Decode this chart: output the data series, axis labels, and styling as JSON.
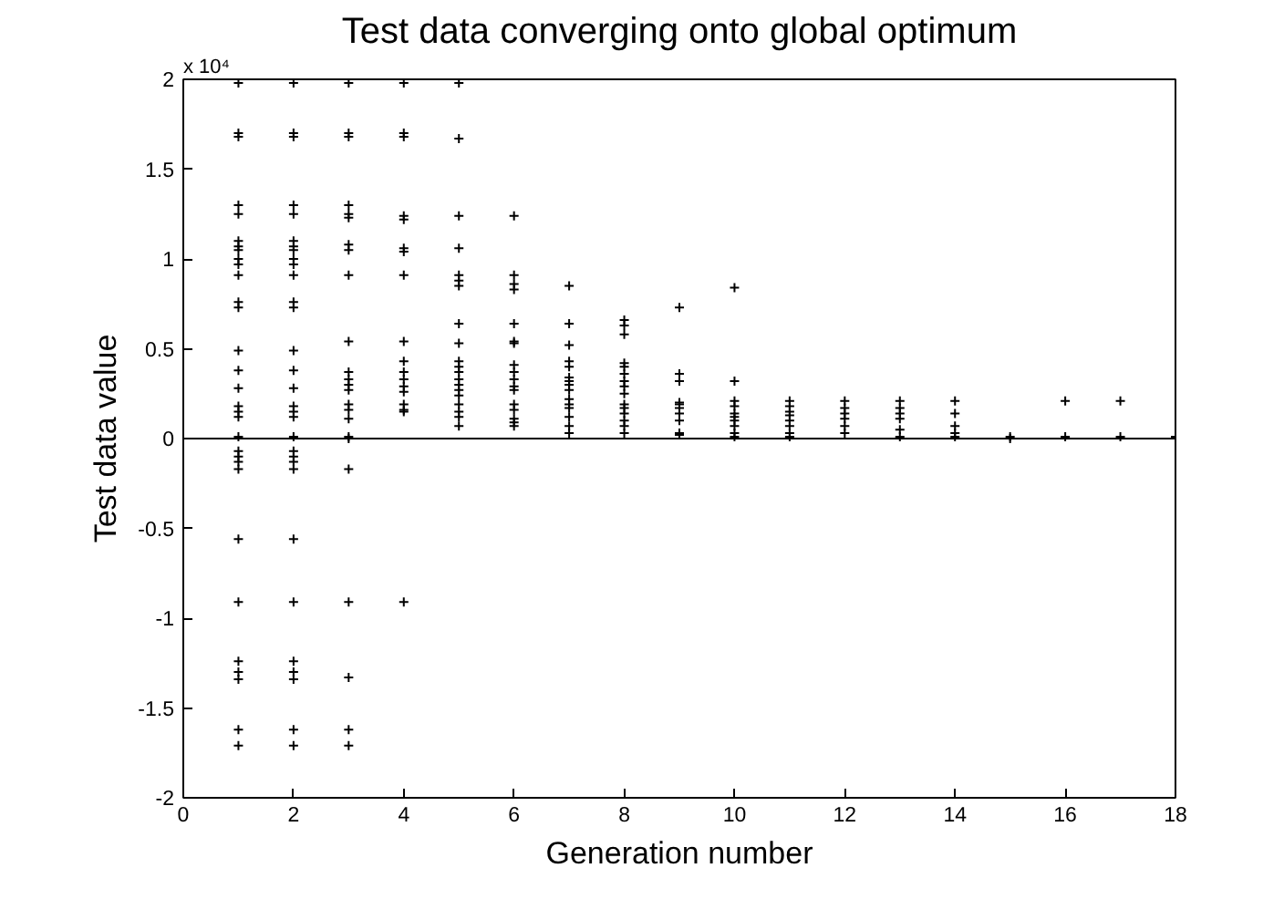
{
  "chart_data": {
    "type": "scatter",
    "title": "Test data converging onto global optimum",
    "xlabel": "Generation number",
    "ylabel": "Test data value",
    "annotations": [
      "x 10⁴"
    ],
    "xlim": [
      0,
      18
    ],
    "xticks": [
      0,
      2,
      4,
      6,
      8,
      10,
      12,
      14,
      16,
      18
    ],
    "ylim": [
      -2,
      2
    ],
    "yticks": [
      -2,
      -1.5,
      -1,
      -0.5,
      0,
      0.5,
      1,
      1.5,
      2
    ],
    "marker": "cross",
    "ref_lines": [
      {
        "axis": "y",
        "value": 0,
        "color": "#000000",
        "line_style": "solid"
      }
    ],
    "series": [
      {
        "color": "#000000",
        "x": [
          1,
          1,
          1,
          1,
          1,
          1,
          1,
          1,
          1,
          1,
          1,
          1,
          1,
          1,
          1,
          1,
          1,
          1,
          1,
          1,
          1,
          1,
          1,
          1,
          1,
          1,
          1,
          1,
          1,
          1,
          1,
          2,
          2,
          2,
          2,
          2,
          2,
          2,
          2,
          2,
          2,
          2,
          2,
          2,
          2,
          2,
          2,
          2,
          2,
          2,
          2,
          2,
          2,
          2,
          2,
          2,
          2,
          2,
          2,
          2,
          2,
          2,
          3,
          3,
          3,
          3,
          3,
          3,
          3,
          3,
          3,
          3,
          3,
          3,
          3,
          3,
          3,
          3,
          3,
          3,
          3,
          3,
          3,
          3,
          3,
          3,
          4,
          4,
          4,
          4,
          4,
          4,
          4,
          4,
          4,
          4,
          4,
          4,
          4,
          4,
          4,
          4,
          4,
          4,
          5,
          5,
          5,
          5,
          5,
          5,
          5,
          5,
          5,
          5,
          5,
          5,
          5,
          5,
          5,
          5,
          5,
          5,
          5,
          5,
          6,
          6,
          6,
          6,
          6,
          6,
          6,
          6,
          6,
          6,
          6,
          6,
          6,
          6,
          6,
          6,
          6,
          7,
          7,
          7,
          7,
          7,
          7,
          7,
          7,
          7,
          7,
          7,
          7,
          7,
          7,
          7,
          8,
          8,
          8,
          8,
          8,
          8,
          8,
          8,
          8,
          8,
          8,
          8,
          8,
          8,
          8,
          9,
          9,
          9,
          9,
          9,
          9,
          9,
          9,
          9,
          9,
          10,
          10,
          10,
          10,
          10,
          10,
          10,
          10,
          10,
          10,
          11,
          11,
          11,
          11,
          11,
          11,
          11,
          11,
          12,
          12,
          12,
          12,
          12,
          12,
          13,
          13,
          13,
          13,
          13,
          13,
          14,
          14,
          14,
          14,
          14,
          15,
          15,
          16,
          16,
          17,
          17,
          18
        ],
        "values": [
          1.98,
          1.7,
          1.68,
          1.3,
          1.25,
          1.1,
          1.07,
          1.05,
          1.0,
          0.97,
          0.91,
          0.76,
          0.73,
          0.49,
          0.38,
          0.28,
          0.18,
          0.15,
          0.12,
          0.01,
          -0.07,
          -0.1,
          -0.13,
          -0.17,
          -0.56,
          -0.91,
          -1.24,
          -1.3,
          -1.34,
          -1.62,
          -1.71,
          1.98,
          1.7,
          1.68,
          1.3,
          1.25,
          1.1,
          1.07,
          1.05,
          1.0,
          0.97,
          0.91,
          0.76,
          0.73,
          0.49,
          0.38,
          0.28,
          0.18,
          0.15,
          0.12,
          0.01,
          -0.07,
          -0.1,
          -0.13,
          -0.17,
          -0.56,
          -0.91,
          -1.24,
          -1.3,
          -1.34,
          -1.62,
          -1.71,
          1.98,
          1.7,
          1.68,
          1.3,
          1.25,
          1.23,
          1.08,
          1.05,
          0.91,
          0.54,
          0.37,
          0.33,
          0.3,
          0.27,
          0.19,
          0.16,
          0.11,
          0.01,
          0.0,
          -0.17,
          -0.91,
          -1.33,
          -1.62,
          -1.71,
          1.98,
          1.7,
          1.68,
          1.24,
          1.22,
          1.06,
          1.04,
          0.91,
          0.54,
          0.43,
          0.37,
          0.33,
          0.29,
          0.26,
          0.19,
          0.16,
          0.15,
          -0.91,
          1.98,
          1.67,
          1.24,
          1.06,
          0.91,
          0.88,
          0.85,
          0.64,
          0.53,
          0.43,
          0.4,
          0.37,
          0.33,
          0.3,
          0.27,
          0.24,
          0.19,
          0.15,
          0.12,
          0.07,
          1.24,
          0.91,
          0.86,
          0.83,
          0.64,
          0.54,
          0.53,
          0.41,
          0.37,
          0.33,
          0.29,
          0.27,
          0.19,
          0.16,
          0.11,
          0.09,
          0.07,
          0.85,
          0.64,
          0.52,
          0.43,
          0.4,
          0.34,
          0.32,
          0.3,
          0.27,
          0.22,
          0.19,
          0.17,
          0.12,
          0.07,
          0.03,
          0.66,
          0.63,
          0.58,
          0.42,
          0.4,
          0.36,
          0.32,
          0.29,
          0.25,
          0.19,
          0.17,
          0.14,
          0.1,
          0.07,
          0.03,
          0.73,
          0.36,
          0.32,
          0.2,
          0.19,
          0.17,
          0.14,
          0.1,
          0.03,
          0.02,
          0.84,
          0.32,
          0.21,
          0.18,
          0.14,
          0.12,
          0.1,
          0.07,
          0.03,
          0.01,
          0.21,
          0.18,
          0.15,
          0.13,
          0.1,
          0.07,
          0.03,
          0.01,
          0.21,
          0.17,
          0.14,
          0.11,
          0.07,
          0.03,
          0.21,
          0.17,
          0.14,
          0.11,
          0.05,
          0.01,
          0.21,
          0.14,
          0.07,
          0.03,
          0.01,
          0.01,
          0.0,
          0.21,
          0.01,
          0.21,
          0.01,
          0.01
        ]
      }
    ]
  }
}
